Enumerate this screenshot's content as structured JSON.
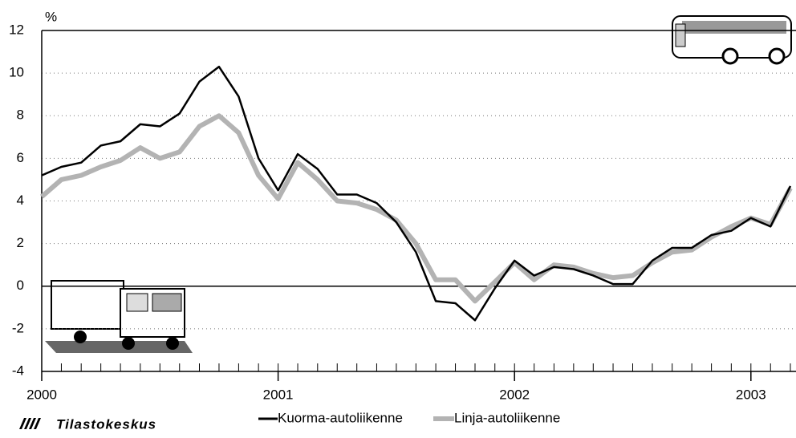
{
  "chart_data": {
    "type": "line",
    "y_label": "%",
    "x": [
      2000,
      2000.083,
      2000.167,
      2000.25,
      2000.333,
      2000.417,
      2000.5,
      2000.583,
      2000.667,
      2000.75,
      2000.833,
      2000.917,
      2001,
      2001.083,
      2001.167,
      2001.25,
      2001.333,
      2001.417,
      2001.5,
      2001.583,
      2001.667,
      2001.75,
      2001.833,
      2001.917,
      2002,
      2002.083,
      2002.167,
      2002.25,
      2002.333,
      2002.417,
      2002.5,
      2002.583,
      2002.667,
      2002.75,
      2002.833,
      2002.917,
      2003,
      2003.083,
      2003.167
    ],
    "series": [
      {
        "name": "Linja-autoliikenne",
        "color": "#b3b3b3",
        "values": [
          4.2,
          5.0,
          5.2,
          5.6,
          5.9,
          6.5,
          6.0,
          6.3,
          7.5,
          8.0,
          7.2,
          5.2,
          4.1,
          5.8,
          5.0,
          4.0,
          3.9,
          3.6,
          3.1,
          2.0,
          0.3,
          0.3,
          -0.7,
          0.2,
          1.1,
          0.3,
          1.0,
          0.9,
          0.6,
          0.4,
          0.5,
          1.1,
          1.6,
          1.7,
          2.3,
          2.8,
          3.2,
          2.9,
          4.6
        ]
      },
      {
        "name": "Kuorma-autoliikenne",
        "color": "#000000",
        "values": [
          5.2,
          5.6,
          5.8,
          6.6,
          6.8,
          7.6,
          7.5,
          8.1,
          9.6,
          10.3,
          8.9,
          6.0,
          4.5,
          6.2,
          5.5,
          4.3,
          4.3,
          3.9,
          3.0,
          1.6,
          -0.7,
          -0.8,
          -1.6,
          -0.1,
          1.2,
          0.5,
          0.9,
          0.8,
          0.5,
          0.1,
          0.1,
          1.2,
          1.8,
          1.8,
          2.4,
          2.6,
          3.2,
          2.8,
          4.7
        ]
      }
    ],
    "xlim": [
      2000,
      2003.167
    ],
    "xticks": [
      2000,
      2001,
      2002,
      2003
    ],
    "ylim": [
      -4,
      12
    ],
    "yticks": [
      -4,
      -2,
      0,
      2,
      4,
      6,
      8,
      10,
      12
    ],
    "grid": true,
    "source": "Tilastokeskus"
  }
}
